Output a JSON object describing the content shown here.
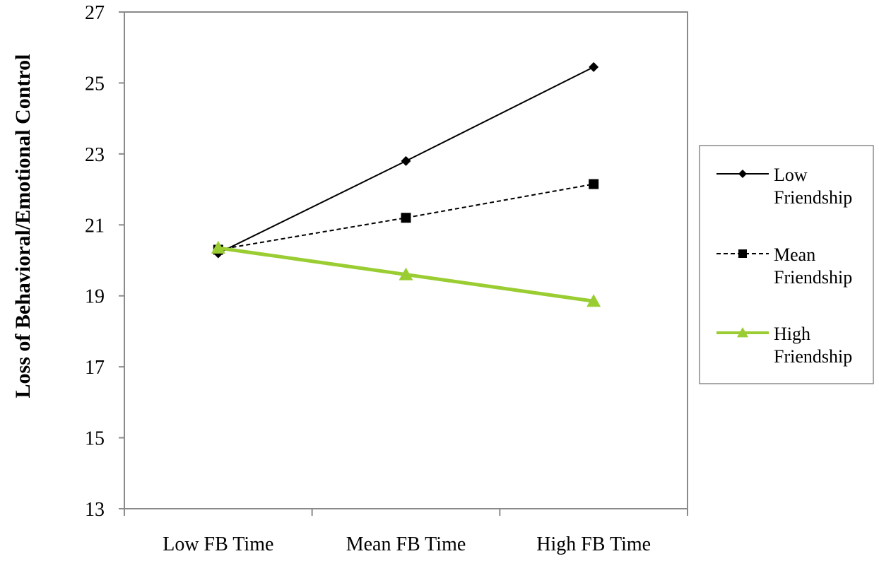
{
  "chart_data": {
    "type": "line",
    "categories": [
      "Low FB Time",
      "Mean FB Time",
      "High FB Time"
    ],
    "ylabel": "Loss of Behavioral/Emotional Control",
    "xlabel": "",
    "ylim": [
      13,
      27
    ],
    "yticks": [
      13,
      15,
      17,
      19,
      21,
      23,
      25,
      27
    ],
    "grid": false,
    "legend_position": "right",
    "series": [
      {
        "name_lines": [
          "Low",
          "Friendship"
        ],
        "values": [
          20.2,
          22.8,
          25.45
        ],
        "color": "#000000",
        "marker": "diamond",
        "dash": "solid"
      },
      {
        "name_lines": [
          "Mean",
          "Friendship"
        ],
        "values": [
          20.3,
          21.2,
          22.15
        ],
        "color": "#000000",
        "marker": "square",
        "dash": "dashed"
      },
      {
        "name_lines": [
          "High",
          "Friendship"
        ],
        "values": [
          20.35,
          19.6,
          18.85
        ],
        "color": "#9ACD32",
        "marker": "triangle",
        "dash": "solid"
      }
    ]
  }
}
